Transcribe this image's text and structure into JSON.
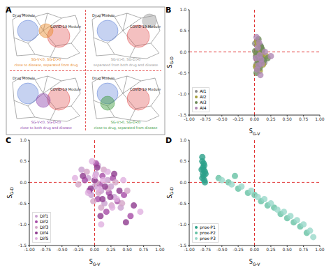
{
  "diagram": {
    "label": "A",
    "drug_module": "Drug Module",
    "disease_module": "COVID-19 Module",
    "quadrants": [
      {
        "condition": "SG-V<0, SG-D>0",
        "description": "close to disease, separated from drug",
        "color": "#e8892b"
      },
      {
        "condition": "SG-V>0, SG-D>0",
        "description": "separated from both drug and disease",
        "color": "#9a9a9a"
      },
      {
        "condition": "SG-V<0, SG-D<0",
        "description": "close to both drug and disease",
        "color": "#8e44ad"
      },
      {
        "condition": "SG-V>0, SG-D<0",
        "description": "close to drug, separated from disease",
        "color": "#3a9a3a"
      }
    ]
  },
  "chart_data": [
    {
      "label": "B",
      "type": "scatter",
      "xlabel": "SG-V",
      "ylabel": "SG-D",
      "xlim": [
        -1,
        1
      ],
      "ylim": [
        -1.5,
        1
      ],
      "xticks": [
        {
          "value": -1,
          "label": "-1.00"
        },
        {
          "value": -0.75,
          "label": "-0.75"
        },
        {
          "value": -0.5,
          "label": "-0.50"
        },
        {
          "value": -0.25,
          "label": "-0.25"
        },
        {
          "value": 0,
          "label": "0.00"
        },
        {
          "value": 0.25,
          "label": "0.25"
        },
        {
          "value": 0.5,
          "label": "0.50"
        },
        {
          "value": 0.75,
          "label": "0.75"
        },
        {
          "value": 1,
          "label": "1.00"
        }
      ],
      "yticks": [
        {
          "value": -1.5,
          "label": "-1.5"
        },
        {
          "value": -1,
          "label": "-1.0"
        },
        {
          "value": -0.5,
          "label": "-0.5"
        },
        {
          "value": 0,
          "label": "0.0"
        },
        {
          "value": 0.5,
          "label": "0.5"
        },
        {
          "value": 1,
          "label": "1.0"
        }
      ],
      "ref_lines": {
        "x": 0,
        "y": 0
      },
      "legend": "lower left",
      "series": [
        {
          "name": "AI1",
          "color": "#8c8c8c",
          "x": [
            0.02,
            0.05,
            0.08,
            0.03,
            0.1,
            0.06,
            0.12,
            0.01,
            0.04,
            0.07,
            0.15,
            0.09
          ],
          "y": [
            -0.1,
            0.05,
            -0.2,
            -0.3,
            0.1,
            -0.15,
            -0.05,
            0.2,
            -0.4,
            0.0,
            -0.25,
            0.15
          ]
        },
        {
          "name": "AI2",
          "color": "#a6a03c",
          "x": [
            0.03,
            0.06,
            0.09,
            0.11,
            0.02,
            0.05,
            0.13,
            0.08,
            0.18,
            0.04,
            0.07,
            0.1
          ],
          "y": [
            -0.05,
            -0.25,
            0.08,
            -0.12,
            -0.35,
            0.18,
            -0.3,
            -0.45,
            -0.1,
            0.25,
            -0.18,
            -0.02
          ]
        },
        {
          "name": "AI3",
          "color": "#6e8b5a",
          "x": [
            0.01,
            0.04,
            0.07,
            0.1,
            0.14,
            0.03,
            0.06,
            0.09,
            0.12,
            0.2,
            0.05,
            0.08
          ],
          "y": [
            0.02,
            -0.08,
            -0.3,
            0.12,
            -0.2,
            -0.5,
            0.3,
            -0.12,
            0.05,
            -0.15,
            -0.22,
            -0.38
          ]
        },
        {
          "name": "AI4",
          "color": "#b08ab5",
          "x": [
            0.02,
            0.05,
            0.08,
            0.11,
            0.04,
            0.07,
            0.1,
            0.16,
            0.03,
            0.06,
            0.25,
            0.09
          ],
          "y": [
            -0.15,
            0.1,
            -0.08,
            -0.28,
            -0.42,
            0.22,
            -0.18,
            0.0,
            0.35,
            -0.32,
            -0.1,
            -0.55
          ]
        }
      ]
    },
    {
      "label": "C",
      "type": "scatter",
      "xlabel": "SG-V",
      "ylabel": "SG-D",
      "xlim": [
        -1,
        1
      ],
      "ylim": [
        -1.5,
        1
      ],
      "xticks": [
        {
          "value": -1,
          "label": "-1.00"
        },
        {
          "value": -0.75,
          "label": "-0.75"
        },
        {
          "value": -0.5,
          "label": "-0.50"
        },
        {
          "value": -0.25,
          "label": "-0.25"
        },
        {
          "value": 0,
          "label": "0.00"
        },
        {
          "value": 0.25,
          "label": "0.25"
        },
        {
          "value": 0.5,
          "label": "0.50"
        },
        {
          "value": 0.75,
          "label": "0.75"
        },
        {
          "value": 1,
          "label": "1.00"
        }
      ],
      "yticks": [
        {
          "value": -1.5,
          "label": "-1.5"
        },
        {
          "value": -1,
          "label": "-1.0"
        },
        {
          "value": -0.5,
          "label": "-0.5"
        },
        {
          "value": 0,
          "label": "0.0"
        },
        {
          "value": 0.5,
          "label": "0.5"
        },
        {
          "value": 1,
          "label": "1.0"
        }
      ],
      "ref_lines": {
        "x": 0,
        "y": 0
      },
      "legend": "lower left",
      "series": [
        {
          "name": "Dif1",
          "color": "#c9a0d0",
          "x": [
            -0.2,
            -0.1,
            0.0,
            0.1,
            0.2,
            0.3,
            0.05,
            0.15,
            -0.05,
            0.25,
            0.4,
            0.02
          ],
          "y": [
            0.3,
            0.1,
            -0.1,
            -0.2,
            0.05,
            -0.35,
            0.4,
            -0.5,
            -0.3,
            -0.1,
            -0.6,
            0.2
          ]
        },
        {
          "name": "Dif2",
          "color": "#a64ca6",
          "x": [
            -0.15,
            0.05,
            0.12,
            0.22,
            0.35,
            0.08,
            0.18,
            0.28,
            0.45,
            -0.08,
            0.02,
            0.55
          ],
          "y": [
            0.05,
            -0.4,
            0.15,
            -0.25,
            -0.45,
            -0.05,
            -0.7,
            0.1,
            -0.3,
            -0.2,
            0.45,
            -0.8
          ]
        },
        {
          "name": "Dif3",
          "color": "#d4a6c8",
          "x": [
            -0.25,
            -0.12,
            0.03,
            0.1,
            0.2,
            0.32,
            0.42,
            0.06,
            0.14,
            0.5,
            -0.02,
            0.26
          ],
          "y": [
            -0.05,
            0.25,
            0.0,
            -0.6,
            -0.15,
            0.0,
            -0.5,
            -0.25,
            0.3,
            -0.2,
            -0.45,
            -0.55
          ]
        },
        {
          "name": "Dif4",
          "color": "#8e3b8e",
          "x": [
            -0.18,
            -0.06,
            0.04,
            0.16,
            0.24,
            0.38,
            0.09,
            0.3,
            0.6,
            0.0,
            0.12,
            0.48
          ],
          "y": [
            0.15,
            -0.15,
            0.35,
            -0.1,
            -0.35,
            -0.2,
            -0.8,
            0.2,
            -0.55,
            0.05,
            -0.4,
            -0.95
          ]
        },
        {
          "name": "Dif5",
          "color": "#e0b0e0",
          "x": [
            -0.3,
            -0.1,
            0.07,
            0.13,
            0.27,
            0.34,
            0.44,
            0.01,
            0.2,
            0.7,
            -0.04,
            0.1
          ],
          "y": [
            0.1,
            -0.25,
            -0.15,
            0.05,
            -0.6,
            -0.4,
            0.05,
            0.15,
            0.25,
            -0.7,
            0.5,
            -1.0
          ]
        }
      ]
    },
    {
      "label": "D",
      "type": "scatter",
      "xlabel": "SG-V",
      "ylabel": "SG-D",
      "xlim": [
        -1,
        1
      ],
      "ylim": [
        -1.5,
        1
      ],
      "xticks": [
        {
          "value": -1,
          "label": "-1.00"
        },
        {
          "value": -0.75,
          "label": "-0.75"
        },
        {
          "value": -0.5,
          "label": "-0.50"
        },
        {
          "value": -0.25,
          "label": "-0.25"
        },
        {
          "value": 0,
          "label": "0.00"
        },
        {
          "value": 0.25,
          "label": "0.25"
        },
        {
          "value": 0.5,
          "label": "0.50"
        },
        {
          "value": 0.75,
          "label": "0.75"
        },
        {
          "value": 1,
          "label": "1.00"
        }
      ],
      "yticks": [
        {
          "value": -1.5,
          "label": "-1.5"
        },
        {
          "value": -1,
          "label": "-1.0"
        },
        {
          "value": -0.5,
          "label": "-0.5"
        },
        {
          "value": 0,
          "label": "0.0"
        },
        {
          "value": 0.5,
          "label": "0.5"
        },
        {
          "value": 1,
          "label": "1.0"
        }
      ],
      "ref_lines": {
        "x": 0,
        "y": 0
      },
      "legend": "lower left",
      "series": [
        {
          "name": "prox-P1",
          "color": "#2ca089",
          "x": [
            -0.8,
            -0.79,
            -0.78,
            -0.77,
            -0.8,
            -0.78,
            -0.76,
            -0.79,
            -0.77,
            -0.81,
            -0.78,
            -0.76,
            -0.8,
            -0.75
          ],
          "y": [
            0.1,
            0.2,
            0.3,
            0.4,
            0.5,
            0.15,
            0.25,
            0.35,
            0.05,
            0.3,
            0.45,
            0.0,
            0.6,
            0.2
          ]
        },
        {
          "name": "prox-P2",
          "color": "#66c2a4",
          "x": [
            -0.55,
            -0.4,
            -0.25,
            -0.1,
            0.0,
            0.1,
            0.2,
            0.3,
            0.4,
            0.5,
            0.6,
            0.7,
            0.8,
            -0.3
          ],
          "y": [
            0.1,
            0.0,
            -0.15,
            -0.25,
            -0.3,
            -0.45,
            -0.55,
            -0.6,
            -0.75,
            -0.85,
            -0.95,
            -1.05,
            -1.2,
            0.15
          ]
        },
        {
          "name": "prox-P3",
          "color": "#99d8c9",
          "x": [
            -0.5,
            -0.35,
            -0.2,
            -0.05,
            0.05,
            0.15,
            0.25,
            0.35,
            0.45,
            0.55,
            0.65,
            0.75,
            0.85,
            0.9
          ],
          "y": [
            0.05,
            -0.05,
            -0.1,
            -0.2,
            -0.35,
            -0.4,
            -0.5,
            -0.65,
            -0.7,
            -0.8,
            -0.9,
            -1.0,
            -1.15,
            -1.3
          ]
        }
      ]
    }
  ]
}
